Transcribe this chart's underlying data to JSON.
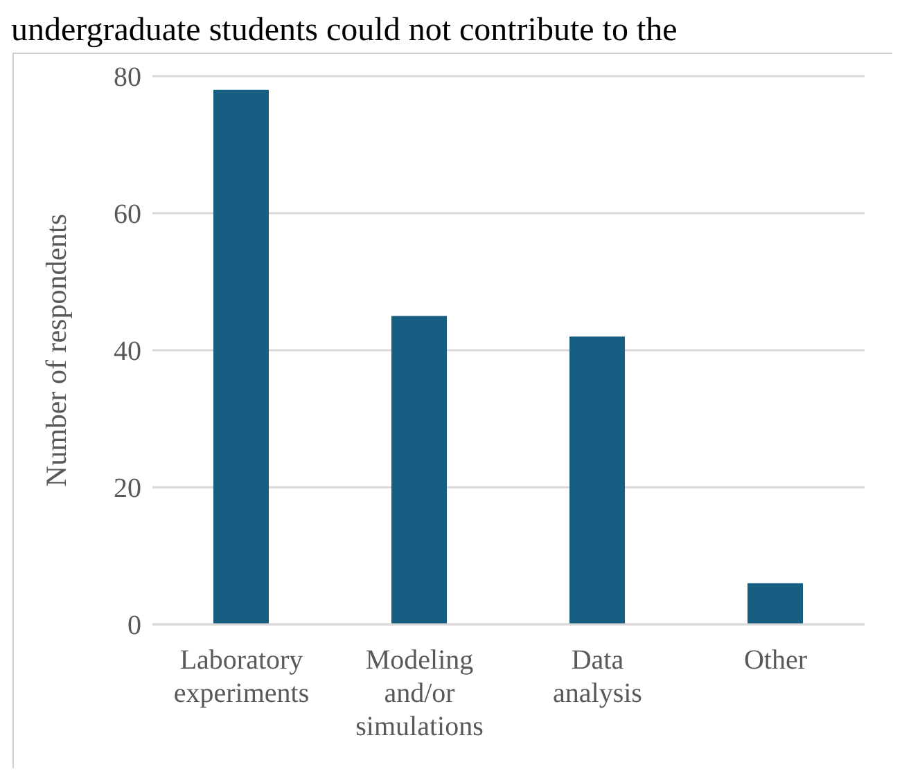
{
  "chart_data": {
    "type": "bar",
    "title": "undergraduate students could not contribute to the",
    "ylabel": "Number of respondents",
    "categories": [
      "Laboratory experiments",
      "Modeling and/or simulations",
      "Data analysis",
      "Other"
    ],
    "values": [
      78,
      45,
      42,
      6
    ],
    "color": "#175f82",
    "ylim": [
      0,
      80
    ],
    "yticks": [
      0,
      20,
      40,
      60,
      80
    ],
    "grid": "y"
  }
}
